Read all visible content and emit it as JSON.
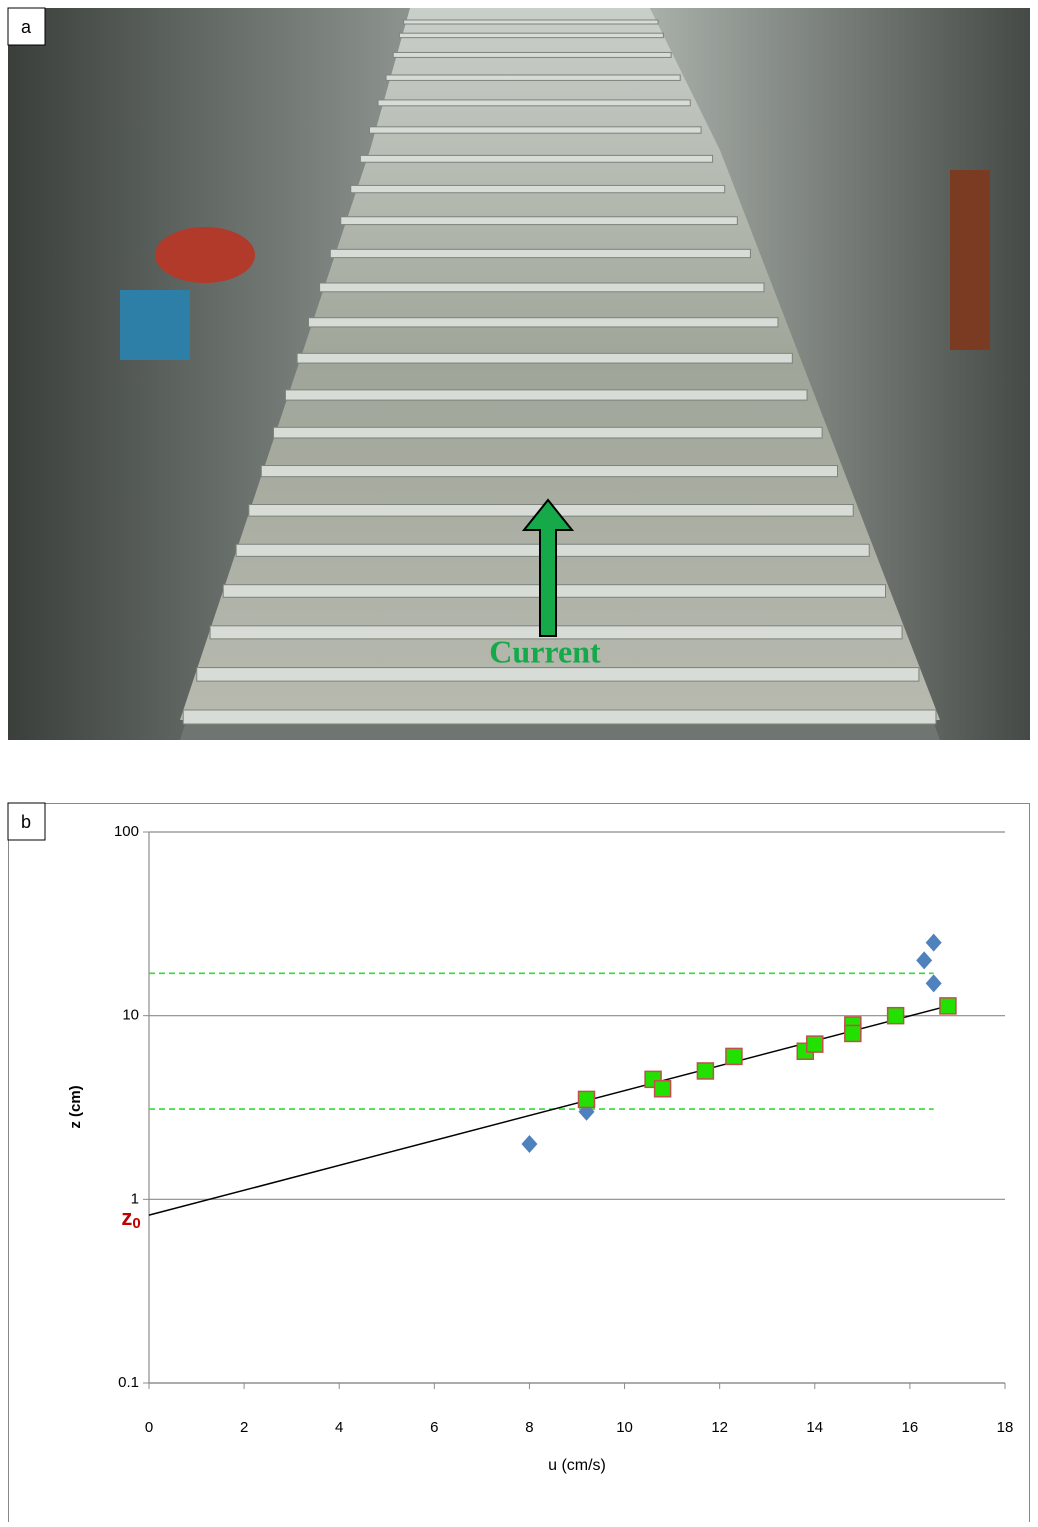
{
  "panel_a": {
    "label": "a",
    "annotation": "Current"
  },
  "chart_data": {
    "type": "scatter",
    "label": "b",
    "x_label": "u (cm/s)",
    "y_label": "z (cm)",
    "annotation": {
      "text": "z",
      "subscript": "0",
      "color": "#c00000"
    },
    "xlim": [
      0,
      18
    ],
    "xticks": [
      0,
      2,
      4,
      6,
      8,
      10,
      12,
      14,
      16,
      18
    ],
    "ylim": [
      0.1,
      100
    ],
    "yticks": [
      0.1,
      1,
      10,
      100
    ],
    "y_scale": "log",
    "grid": true,
    "series": [
      {
        "marker": "diamond",
        "color": "#4f81bd",
        "x": [
          8,
          9.2,
          16.3,
          16.5,
          16.5
        ],
        "values": [
          2,
          3,
          20,
          25,
          15
        ]
      },
      {
        "marker": "square",
        "color": "#22e000",
        "edge": "#c0504d",
        "x": [
          9.2,
          10.6,
          10.8,
          11.7,
          12.3,
          13.8,
          14,
          14.8,
          14.8,
          15.7,
          16.8
        ],
        "values": [
          3.5,
          4.5,
          4,
          5,
          6,
          6.4,
          7,
          8.9,
          8,
          10,
          11.3
        ]
      }
    ],
    "fit": {
      "x": [
        0,
        16.8
      ],
      "values": [
        0.82,
        11.3
      ],
      "color": "#000000"
    },
    "hlines": [
      {
        "value": 17,
        "x": [
          0,
          16.5
        ]
      },
      {
        "value": 3.1,
        "x": [
          0,
          16.5
        ]
      }
    ],
    "hline_color": "#33dd33"
  }
}
